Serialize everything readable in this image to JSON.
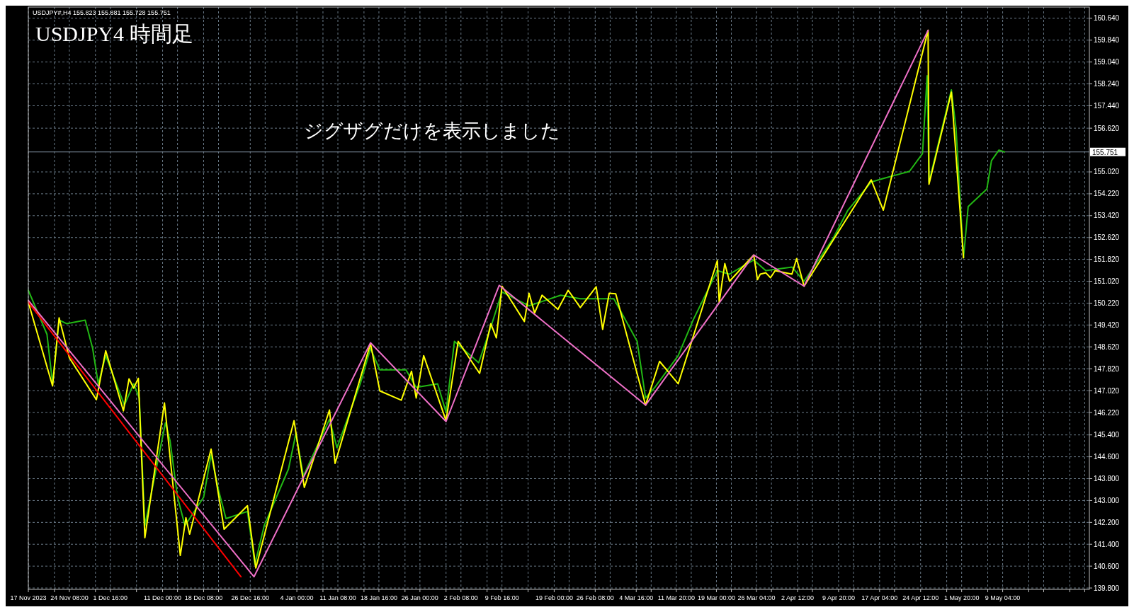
{
  "chart_data": {
    "type": "line",
    "title": "USDJPY4 時間足",
    "annotations": [
      "USDJPY#,H4  155.823 155.881 155.728 155.751",
      "ジグザグだけを表示しました"
    ],
    "xlim": [
      "2023-11-17T00:00",
      "2024-05-24T16:00"
    ],
    "ylim": [
      139.75,
      161.05
    ],
    "grid": true,
    "xticks": [
      {
        "value": "2023-11-17T00:00",
        "label": "17 Nov 2023"
      },
      {
        "value": "2023-11-21T16:00",
        "label": null
      },
      {
        "value": "2023-11-24T08:00",
        "label": "24 Nov 08:00"
      },
      {
        "value": "2023-11-29T00:00",
        "label": null
      },
      {
        "value": "2023-12-01T16:00",
        "label": "1 Dec 16:00"
      },
      {
        "value": "2023-12-06T08:00",
        "label": null
      },
      {
        "value": "2023-12-11T00:00",
        "label": "11 Dec 00:00"
      },
      {
        "value": "2023-12-13T16:00",
        "label": null
      },
      {
        "value": "2023-12-18T08:00",
        "label": "18 Dec 08:00"
      },
      {
        "value": "2023-12-21T00:00",
        "label": null
      },
      {
        "value": "2023-12-26T16:00",
        "label": "26 Dec 16:00"
      },
      {
        "value": "2023-12-29T08:00",
        "label": null
      },
      {
        "value": "2024-01-04T00:00",
        "label": "4 Jan 00:00"
      },
      {
        "value": "2024-01-08T16:00",
        "label": null
      },
      {
        "value": "2024-01-11T08:00",
        "label": "11 Jan 08:00"
      },
      {
        "value": "2024-01-16T00:00",
        "label": null
      },
      {
        "value": "2024-01-18T16:00",
        "label": "18 Jan 16:00"
      },
      {
        "value": "2024-01-23T08:00",
        "label": null
      },
      {
        "value": "2024-01-26T00:00",
        "label": "26 Jan 00:00"
      },
      {
        "value": "2024-01-30T16:00",
        "label": null
      },
      {
        "value": "2024-02-02T08:00",
        "label": "2 Feb 08:00"
      },
      {
        "value": "2024-02-07T00:00",
        "label": null
      },
      {
        "value": "2024-02-09T16:00",
        "label": "9 Feb 16:00"
      },
      {
        "value": "2024-02-14T08:00",
        "label": null
      },
      {
        "value": "2024-02-19T00:00",
        "label": "19 Feb 00:00"
      },
      {
        "value": "2024-02-21T16:00",
        "label": null
      },
      {
        "value": "2024-02-26T08:00",
        "label": "26 Feb 08:00"
      },
      {
        "value": "2024-02-29T00:00",
        "label": null
      },
      {
        "value": "2024-03-04T16:00",
        "label": "4 Mar 16:00"
      },
      {
        "value": "2024-03-07T08:00",
        "label": null
      },
      {
        "value": "2024-03-11T20:00",
        "label": "11 Mar 20:00"
      },
      {
        "value": "2024-03-14T12:00",
        "label": null
      },
      {
        "value": "2024-03-19T00:00",
        "label": "19 Mar 00:00"
      },
      {
        "value": "2024-03-21T16:00",
        "label": null
      },
      {
        "value": "2024-03-26T04:00",
        "label": "26 Mar 04:00"
      },
      {
        "value": "2024-03-28T20:00",
        "label": null
      },
      {
        "value": "2024-04-02T12:00",
        "label": "2 Apr 12:00"
      },
      {
        "value": "2024-04-05T04:00",
        "label": null
      },
      {
        "value": "2024-04-09T20:00",
        "label": "9 Apr 20:00"
      },
      {
        "value": "2024-04-12T12:00",
        "label": null
      },
      {
        "value": "2024-04-17T04:00",
        "label": "17 Apr 04:00"
      },
      {
        "value": "2024-04-19T20:00",
        "label": null
      },
      {
        "value": "2024-04-24T12:00",
        "label": "24 Apr 12:00"
      },
      {
        "value": "2024-04-29T04:00",
        "label": null
      },
      {
        "value": "2024-05-01T20:00",
        "label": "1 May 20:00"
      },
      {
        "value": "2024-05-06T12:00",
        "label": null
      },
      {
        "value": "2024-05-09T04:00",
        "label": "9 May 04:00"
      },
      {
        "value": "2024-05-13T20:00",
        "label": null
      },
      {
        "value": "2024-05-16T12:00",
        "label": null
      },
      {
        "value": "2024-05-21T04:00",
        "label": null
      },
      {
        "value": "2024-05-23T20:00",
        "label": null
      }
    ],
    "yticks": [
      {
        "value": 139.8,
        "label": "139.800"
      },
      {
        "value": 140.6,
        "label": "140.600"
      },
      {
        "value": 141.4,
        "label": "141.400"
      },
      {
        "value": 142.2,
        "label": "142.200"
      },
      {
        "value": 143.0,
        "label": "143.000"
      },
      {
        "value": 143.8,
        "label": "143.800"
      },
      {
        "value": 144.6,
        "label": "144.600"
      },
      {
        "value": 145.4,
        "label": "145.400"
      },
      {
        "value": 146.22,
        "label": "146.220"
      },
      {
        "value": 147.02,
        "label": "147.020"
      },
      {
        "value": 147.82,
        "label": "147.820"
      },
      {
        "value": 148.62,
        "label": "148.620"
      },
      {
        "value": 149.42,
        "label": "149.420"
      },
      {
        "value": 150.22,
        "label": "150.220"
      },
      {
        "value": 151.02,
        "label": "151.020"
      },
      {
        "value": 151.82,
        "label": "151.820"
      },
      {
        "value": 152.62,
        "label": "152.620"
      },
      {
        "value": 153.42,
        "label": "153.420"
      },
      {
        "value": 154.22,
        "label": "154.220"
      },
      {
        "value": 155.02,
        "label": "155.020"
      },
      {
        "value": 156.62,
        "label": "156.620"
      },
      {
        "value": 157.44,
        "label": "157.440"
      },
      {
        "value": 158.24,
        "label": "158.240"
      },
      {
        "value": 159.04,
        "label": "159.040"
      },
      {
        "value": 159.84,
        "label": "159.840"
      },
      {
        "value": 160.64,
        "label": "160.640"
      }
    ],
    "ref_lines": [
      {
        "axis": "y",
        "value": 155.751,
        "label": "155.751",
        "color": "#8090a0"
      }
    ],
    "series": [
      {
        "color": "#22b814",
        "x": [
          "2023-11-17T00:00",
          "2023-11-20T08:00",
          "2023-11-21T08:00",
          "2023-11-22T12:00",
          "2023-11-23T20:00",
          "2023-11-27T04:00",
          "2023-11-28T12:00",
          "2023-11-29T12:00",
          "2023-11-30T20:00",
          "2023-12-04T04:00",
          "2023-12-05T20:00",
          "2023-12-06T20:00",
          "2023-12-07T20:00",
          "2023-12-11T12:00",
          "2023-12-12T08:00",
          "2023-12-13T16:00",
          "2023-12-15T00:00",
          "2023-12-18T08:00",
          "2023-12-19T16:00",
          "2023-12-21T00:00",
          "2023-12-22T08:00",
          "2023-12-26T04:00",
          "2023-12-27T12:00",
          "2023-12-29T04:00",
          "2024-01-02T12:00",
          "2024-01-03T20:00",
          "2024-01-05T04:00",
          "2024-01-09T20:00",
          "2024-01-11T04:00",
          "2024-01-15T08:00",
          "2024-01-17T04:00",
          "2024-01-18T20:00",
          "2024-01-23T12:00",
          "2024-01-25T08:00",
          "2024-01-29T04:00",
          "2024-01-30T16:00",
          "2024-02-01T04:00",
          "2024-02-05T12:00",
          "2024-02-07T16:00",
          "2024-02-09T16:00",
          "2024-02-14T12:00",
          "2024-02-20T04:00",
          "2024-02-23T16:00",
          "2024-02-29T16:00",
          "2024-03-04T20:00",
          "2024-03-06T08:00",
          "2024-03-08T00:00",
          "2024-03-12T04:00",
          "2024-03-14T20:00",
          "2024-03-19T04:00",
          "2024-03-21T08:00",
          "2024-03-25T16:00",
          "2024-03-27T20:00",
          "2024-04-01T12:00",
          "2024-04-03T16:00",
          "2024-04-08T20:00",
          "2024-04-11T12:00",
          "2024-04-15T16:00",
          "2024-04-17T20:00",
          "2024-04-22T12:00",
          "2024-04-24T20:00",
          "2024-04-25T16:00",
          "2024-04-26T00:00",
          "2024-04-30T00:00",
          "2024-04-30T20:00",
          "2024-05-02T04:00",
          "2024-05-03T00:00",
          "2024-05-06T08:00",
          "2024-05-07T04:00",
          "2024-05-08T12:00",
          "2024-05-09T12:00"
        ],
        "values": [
          150.69,
          149.08,
          147.27,
          149.6,
          149.47,
          149.6,
          148.56,
          147.27,
          148.3,
          146.49,
          147.27,
          146.75,
          142.08,
          145.84,
          145.19,
          143.12,
          142.08,
          143.12,
          144.67,
          143.38,
          142.34,
          142.6,
          140.66,
          142.08,
          144.15,
          145.45,
          143.9,
          145.97,
          144.93,
          147.27,
          148.56,
          147.78,
          147.78,
          147.14,
          147.27,
          146.23,
          148.82,
          148.04,
          149.34,
          150.63,
          150.12,
          150.51,
          150.38,
          150.38,
          148.82,
          146.75,
          147.14,
          148.3,
          149.6,
          151.41,
          151.28,
          151.8,
          151.41,
          151.54,
          151.02,
          152.58,
          153.62,
          154.65,
          154.78,
          155.04,
          155.69,
          158.54,
          154.65,
          158.02,
          156.6,
          151.88,
          153.75,
          154.39,
          155.43,
          155.82,
          155.75
        ]
      },
      {
        "color": "#ffff00",
        "x": [
          "2023-11-17T00:00",
          "2023-11-21T08:00",
          "2023-11-22T12:00",
          "2023-11-24T08:00",
          "2023-11-29T04:00",
          "2023-11-30T20:00",
          "2023-12-04T00:00",
          "2023-12-05T00:00",
          "2023-12-05T20:00",
          "2023-12-06T16:00",
          "2023-12-07T20:00",
          "2023-12-11T08:00",
          "2023-12-14T04:00",
          "2023-12-15T04:00",
          "2023-12-15T20:00",
          "2023-12-19T16:00",
          "2023-12-22T00:00",
          "2023-12-26T04:00",
          "2023-12-27T16:00",
          "2024-01-03T12:00",
          "2024-01-05T08:00",
          "2024-01-09T20:00",
          "2024-01-10T20:00",
          "2024-01-17T04:00",
          "2024-01-18T20:00",
          "2024-01-22T16:00",
          "2024-01-24T12:00",
          "2024-01-25T08:00",
          "2024-01-26T16:00",
          "2024-01-30T16:00",
          "2024-02-01T20:00",
          "2024-02-05T16:00",
          "2024-02-07T16:00",
          "2024-02-08T16:00",
          "2024-02-09T16:00",
          "2024-02-13T16:00",
          "2024-02-14T12:00",
          "2024-02-15T12:00",
          "2024-02-16T20:00",
          "2024-02-19T16:00",
          "2024-02-21T12:00",
          "2024-02-23T16:00",
          "2024-02-26T12:00",
          "2024-02-27T16:00",
          "2024-02-28T20:00",
          "2024-03-01T00:00",
          "2024-03-06T08:00",
          "2024-03-08T20:00",
          "2024-03-12T04:00",
          "2024-03-19T04:00",
          "2024-03-19T12:00",
          "2024-03-20T12:00",
          "2024-03-21T08:00",
          "2024-03-25T16:00",
          "2024-03-26T08:00",
          "2024-03-26T20:00",
          "2024-03-27T20:00",
          "2024-03-28T16:00",
          "2024-03-29T12:00",
          "2024-04-01T12:00",
          "2024-04-02T08:00",
          "2024-04-03T16:00",
          "2024-04-15T16:00",
          "2024-04-17T20:00",
          "2024-04-25T20:00",
          "2024-04-26T00:00",
          "2024-04-30T00:00",
          "2024-05-02T04:00"
        ],
        "values": [
          150.25,
          147.19,
          149.68,
          148.22,
          146.69,
          148.48,
          146.28,
          147.45,
          147.11,
          147.47,
          141.64,
          146.57,
          140.99,
          142.37,
          141.77,
          144.88,
          141.95,
          142.81,
          140.53,
          145.92,
          143.48,
          146.31,
          144.36,
          148.74,
          147.01,
          146.67,
          147.73,
          146.75,
          148.3,
          145.92,
          148.82,
          147.65,
          149.47,
          148.95,
          150.84,
          149.55,
          150.58,
          149.86,
          150.51,
          149.99,
          150.69,
          150.06,
          150.82,
          149.26,
          150.58,
          150.56,
          146.49,
          148.09,
          147.27,
          151.78,
          150.25,
          151.67,
          151.02,
          151.98,
          151.08,
          151.28,
          151.33,
          151.15,
          151.41,
          151.28,
          151.85,
          150.84,
          154.73,
          153.62,
          160.2,
          154.57,
          157.94,
          151.88
        ]
      },
      {
        "color": "#f070c8",
        "x": [
          "2023-11-17T00:00",
          "2023-12-27T08:00",
          "2024-01-17T04:00",
          "2024-01-30T16:00",
          "2024-02-09T04:00",
          "2024-03-06T08:00",
          "2024-03-25T16:00",
          "2024-04-03T16:00",
          "2024-04-25T20:00"
        ],
        "values": [
          150.32,
          140.21,
          148.77,
          145.89,
          150.87,
          146.49,
          151.98,
          150.84,
          160.2
        ]
      },
      {
        "color": "#ff0000",
        "x": [
          "2023-11-17T00:00",
          "2023-12-25T00:00"
        ],
        "values": [
          150.25,
          140.21
        ]
      }
    ]
  }
}
